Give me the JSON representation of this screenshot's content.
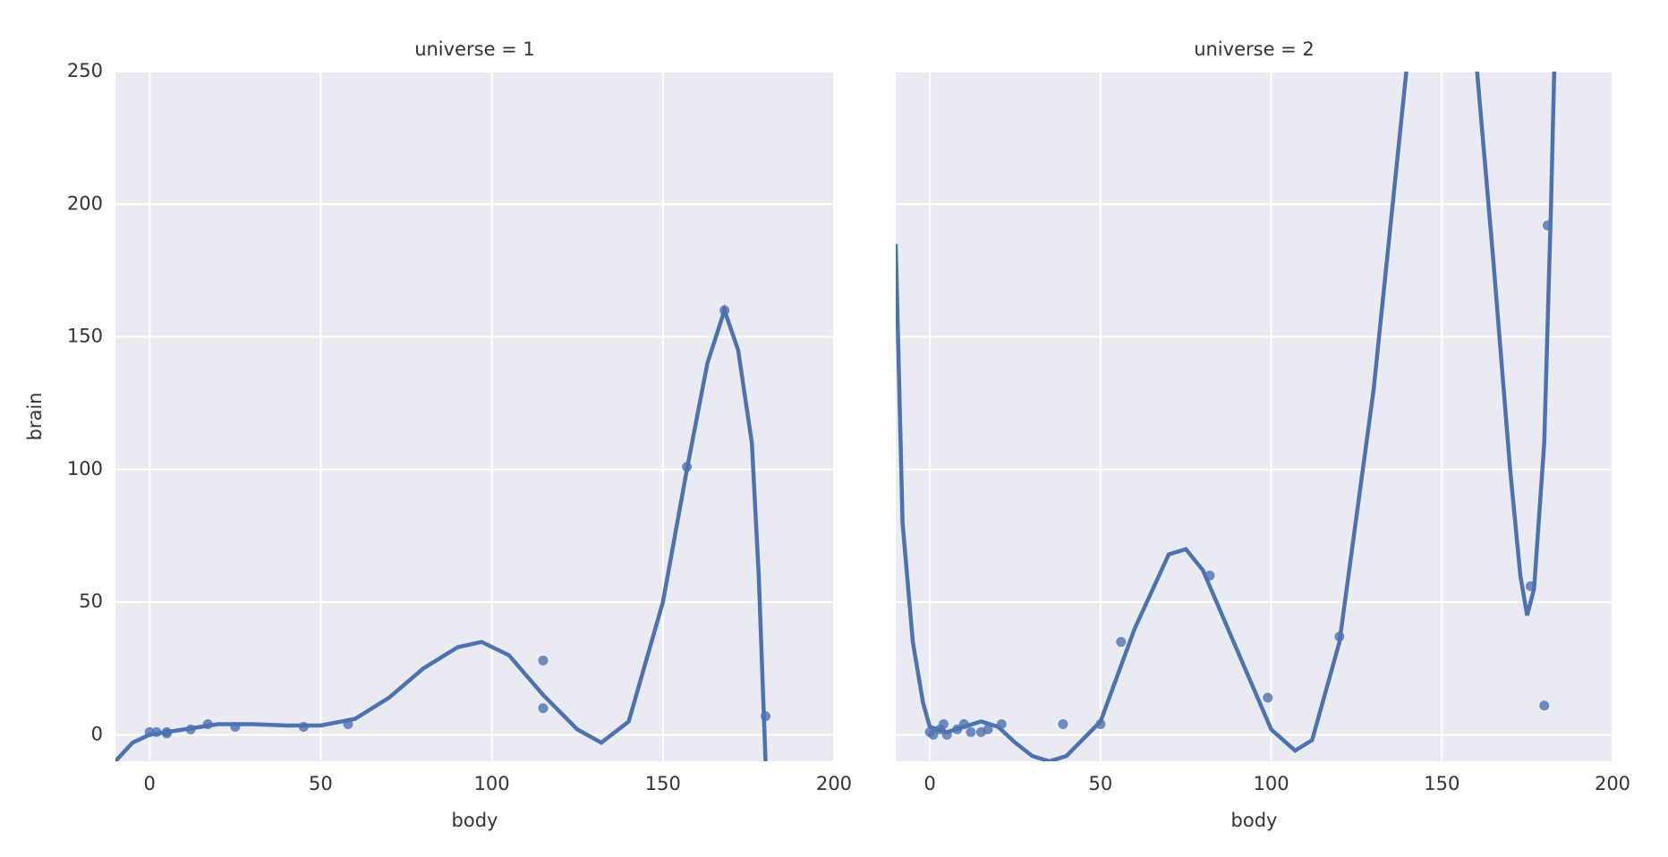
{
  "chart_data": [
    {
      "type": "scatter",
      "title": "universe = 1",
      "xlabel": "body",
      "ylabel": "brain",
      "color": "#4c72b0",
      "background": "#eaeaf2",
      "grid": true,
      "xlim": [
        -10,
        200
      ],
      "ylim": [
        -10,
        250
      ],
      "xticks": [
        0,
        50,
        100,
        150,
        200
      ],
      "yticks": [
        0,
        50,
        100,
        150,
        200,
        250
      ],
      "points": {
        "x": [
          0,
          2,
          5,
          5,
          12,
          17,
          25,
          45,
          58,
          115,
          115,
          157,
          168,
          180
        ],
        "y": [
          1,
          1,
          1,
          0.5,
          2,
          4,
          3,
          3,
          4,
          28,
          10,
          101,
          160,
          7
        ]
      },
      "fit": {
        "x": [
          -10,
          -5,
          0,
          10,
          20,
          30,
          40,
          50,
          60,
          70,
          80,
          90,
          97,
          105,
          115,
          125,
          132,
          140,
          150,
          157,
          163,
          168,
          172,
          176,
          178,
          180
        ],
        "y": [
          -10,
          -3,
          0,
          2,
          4,
          4,
          3.5,
          3.5,
          6,
          14,
          25,
          33,
          35,
          30,
          15,
          2,
          -3,
          5,
          50,
          100,
          140,
          160,
          145,
          110,
          60,
          -10
        ]
      }
    },
    {
      "type": "scatter",
      "title": "universe = 2",
      "xlabel": "body",
      "color": "#4c72b0",
      "background": "#eaeaf2",
      "grid": true,
      "xlim": [
        -10,
        200
      ],
      "ylim": [
        -10,
        250
      ],
      "xticks": [
        0,
        50,
        100,
        150,
        200
      ],
      "yticks": [
        0,
        50,
        100,
        150,
        200,
        250
      ],
      "points": {
        "x": [
          0,
          1,
          3,
          4,
          5,
          8,
          10,
          12,
          15,
          17,
          21,
          39,
          50,
          56,
          82,
          99,
          120,
          176,
          180,
          181
        ],
        "y": [
          1,
          0,
          2,
          4,
          0,
          2,
          4,
          1,
          1,
          2,
          4,
          4,
          4,
          35,
          60,
          14,
          37,
          56,
          11,
          192
        ]
      },
      "fit": {
        "x": [
          -10,
          -8,
          -5,
          -2,
          0,
          5,
          10,
          15,
          20,
          25,
          30,
          35,
          40,
          50,
          60,
          70,
          75,
          80,
          90,
          100,
          107,
          112,
          120,
          130,
          140,
          160,
          165,
          170,
          173,
          175,
          177,
          180,
          182,
          183
        ],
        "y": [
          185,
          80,
          35,
          12,
          3,
          1,
          3,
          5,
          3,
          -3,
          -8,
          -10,
          -8,
          5,
          40,
          68,
          70,
          62,
          32,
          2,
          -6,
          -2,
          35,
          130,
          255,
          255,
          180,
          100,
          60,
          45,
          55,
          110,
          200,
          255
        ]
      }
    }
  ]
}
